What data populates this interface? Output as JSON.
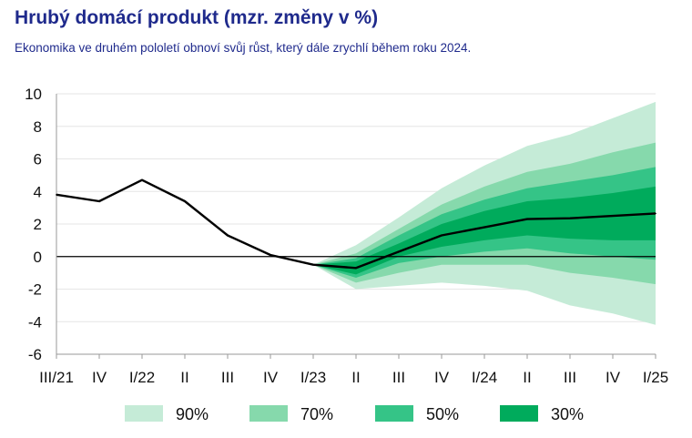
{
  "header": {
    "title": "Hrubý domácí produkt (mzr. změny v %)",
    "subtitle": "Ekonomika ve druhém pololetí obnoví svůj růst, který dále zrychlí během roku 2024."
  },
  "colors": {
    "band_90": "#c5ebd7",
    "band_70": "#86d9ac",
    "band_50": "#35c487",
    "band_30": "#00ab5c",
    "line": "#000000",
    "title": "#1f2a8c"
  },
  "chart_data": {
    "type": "area",
    "title": "Hrubý domácí produkt (mzr. změny v %)",
    "xlabel": "",
    "ylabel": "",
    "categories": [
      "III/21",
      "IV",
      "I/22",
      "II",
      "III",
      "IV",
      "I/23",
      "II",
      "III",
      "IV",
      "I/24",
      "II",
      "III",
      "IV",
      "I/25"
    ],
    "ylim": [
      -6,
      10
    ],
    "yticks": [
      10,
      8,
      6,
      4,
      2,
      0,
      -2,
      -4,
      -6
    ],
    "grid": true,
    "legend_position": "bottom",
    "series": [
      {
        "name": "",
        "values": [
          3.8,
          3.4,
          4.7,
          3.4,
          1.3,
          0.1,
          -0.5,
          -0.7,
          0.3,
          1.3,
          1.8,
          2.3,
          2.35,
          2.5,
          2.65
        ]
      }
    ],
    "fan_start_index": 6,
    "fan_bands": [
      {
        "name": "90%",
        "lower": [
          -0.5,
          -2.0,
          -1.8,
          -1.6,
          -1.8,
          -2.1,
          -3.0,
          -3.5,
          -4.2
        ],
        "upper": [
          -0.5,
          0.7,
          2.4,
          4.2,
          5.6,
          6.8,
          7.5,
          8.5,
          9.5
        ]
      },
      {
        "name": "70%",
        "lower": [
          -0.5,
          -1.6,
          -1.0,
          -0.5,
          -0.5,
          -0.5,
          -1.0,
          -1.3,
          -1.7
        ],
        "upper": [
          -0.5,
          0.2,
          1.7,
          3.2,
          4.3,
          5.2,
          5.7,
          6.4,
          7.0
        ]
      },
      {
        "name": "50%",
        "lower": [
          -0.5,
          -1.3,
          -0.4,
          0.0,
          0.3,
          0.5,
          0.2,
          0.0,
          -0.2
        ],
        "upper": [
          -0.5,
          -0.1,
          1.3,
          2.6,
          3.5,
          4.2,
          4.6,
          5.0,
          5.5
        ]
      },
      {
        "name": "30%",
        "lower": [
          -0.5,
          -1.1,
          0.0,
          0.6,
          1.0,
          1.3,
          1.1,
          1.0,
          1.0
        ],
        "upper": [
          -0.5,
          -0.3,
          0.8,
          2.0,
          2.8,
          3.4,
          3.6,
          3.9,
          4.3
        ]
      }
    ]
  }
}
